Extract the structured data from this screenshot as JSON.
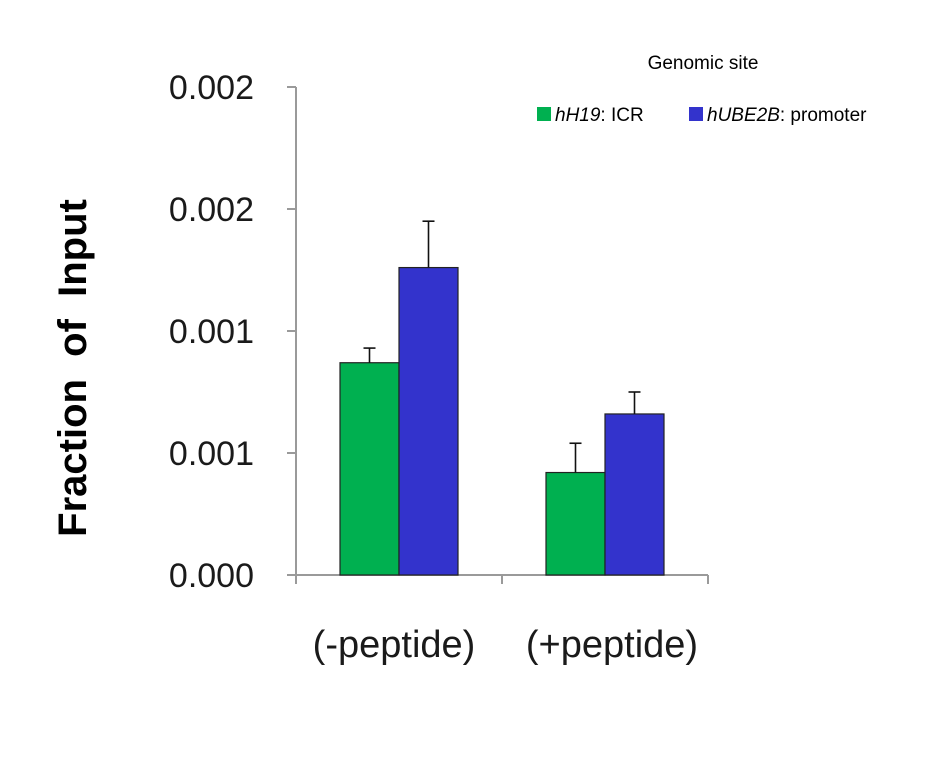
{
  "chart_data": {
    "type": "bar",
    "categories": [
      "(-peptide)",
      "(+peptide)"
    ],
    "series": [
      {
        "name_italic": "hH19",
        "name_rest": ": ICR",
        "color": "#00b050",
        "values": [
          0.00087,
          0.00042
        ],
        "errors": [
          6e-05,
          0.00012
        ]
      },
      {
        "name_italic": "hUBE2B",
        "name_rest": ": promoter",
        "color": "#3333cc",
        "values": [
          0.00126,
          0.00066
        ],
        "errors": [
          0.00019,
          9e-05
        ]
      }
    ],
    "ylabel": "Fraction  of  Input",
    "legend_title": "Genomic site",
    "ylim": [
      0,
      0.002
    ],
    "yticks": [
      0,
      0.0005,
      0.001,
      0.0015,
      0.002
    ],
    "ytick_labels": [
      "0.000",
      "0.001",
      "0.001",
      "0.002",
      "0.002"
    ],
    "legend_position": "top-right",
    "grid": false
  }
}
